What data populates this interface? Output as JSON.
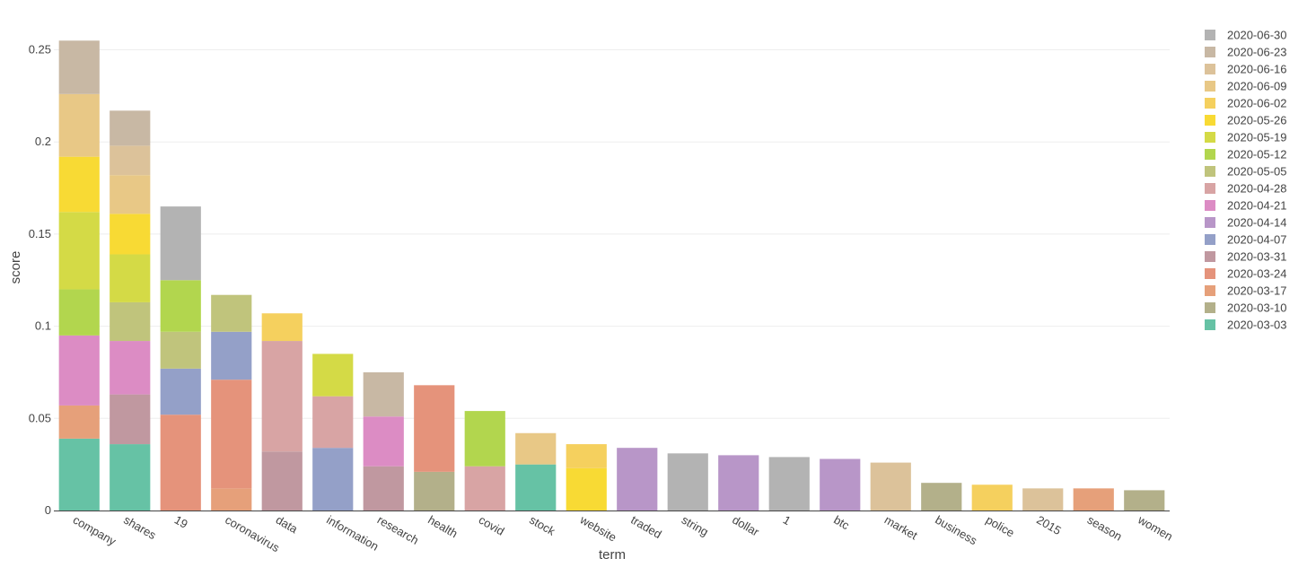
{
  "chart_data": {
    "type": "bar",
    "stacked": true,
    "xlabel": "term",
    "ylabel": "score",
    "ylim": [
      0,
      0.26
    ],
    "yticks": [
      0,
      0.05,
      0.1,
      0.15,
      0.2,
      0.25
    ],
    "ytick_labels": [
      "0",
      "0.05",
      "0.1",
      "0.15",
      "0.2",
      "0.25"
    ],
    "grid": true,
    "legend_position": "right",
    "categories": [
      "company",
      "shares",
      "19",
      "coronavirus",
      "data",
      "information",
      "research",
      "health",
      "covid",
      "stock",
      "website",
      "traded",
      "string",
      "dollar",
      "1",
      "btc",
      "market",
      "business",
      "police",
      "2015",
      "season",
      "women"
    ],
    "series": [
      {
        "name": "2020-03-03",
        "color": "#66c2a5",
        "values": [
          0.039,
          0.036,
          0,
          0,
          0,
          0,
          0,
          0,
          0,
          0.025,
          0,
          0,
          0,
          0,
          0,
          0,
          0,
          0,
          0,
          0,
          0,
          0
        ]
      },
      {
        "name": "2020-03-10",
        "color": "#b3b08a",
        "values": [
          0,
          0,
          0,
          0,
          0,
          0,
          0,
          0.021,
          0,
          0,
          0,
          0,
          0,
          0,
          0,
          0,
          0,
          0.015,
          0,
          0,
          0,
          0.011
        ]
      },
      {
        "name": "2020-03-17",
        "color": "#e6a07a",
        "values": [
          0.018,
          0,
          0,
          0.012,
          0,
          0,
          0,
          0,
          0,
          0,
          0,
          0,
          0,
          0,
          0,
          0,
          0,
          0,
          0,
          0,
          0.012,
          0
        ]
      },
      {
        "name": "2020-03-24",
        "color": "#e5937b",
        "values": [
          0,
          0,
          0.052,
          0.059,
          0,
          0,
          0,
          0.047,
          0,
          0,
          0,
          0,
          0,
          0,
          0,
          0,
          0,
          0,
          0,
          0,
          0,
          0
        ]
      },
      {
        "name": "2020-03-31",
        "color": "#c098a0",
        "values": [
          0,
          0.027,
          0,
          0,
          0.032,
          0,
          0.024,
          0,
          0,
          0,
          0,
          0,
          0,
          0,
          0,
          0,
          0,
          0,
          0,
          0,
          0,
          0
        ]
      },
      {
        "name": "2020-04-07",
        "color": "#94a0c8",
        "values": [
          0,
          0,
          0.025,
          0.026,
          0,
          0.034,
          0,
          0,
          0,
          0,
          0,
          0,
          0,
          0,
          0,
          0,
          0,
          0,
          0,
          0,
          0,
          0
        ]
      },
      {
        "name": "2020-04-14",
        "color": "#b896c8",
        "values": [
          0,
          0,
          0,
          0,
          0,
          0,
          0,
          0,
          0,
          0,
          0,
          0.034,
          0,
          0.03,
          0,
          0.028,
          0,
          0,
          0,
          0,
          0,
          0
        ]
      },
      {
        "name": "2020-04-21",
        "color": "#dc8cc4",
        "values": [
          0.038,
          0.029,
          0,
          0,
          0,
          0,
          0.027,
          0,
          0,
          0,
          0,
          0,
          0,
          0,
          0,
          0,
          0,
          0,
          0,
          0,
          0,
          0
        ]
      },
      {
        "name": "2020-04-28",
        "color": "#d8a4a4",
        "values": [
          0,
          0,
          0,
          0,
          0.06,
          0.028,
          0,
          0,
          0.024,
          0,
          0,
          0,
          0,
          0,
          0,
          0,
          0,
          0,
          0,
          0,
          0,
          0
        ]
      },
      {
        "name": "2020-05-05",
        "color": "#c0c47c",
        "values": [
          0,
          0.021,
          0.02,
          0.02,
          0,
          0,
          0,
          0,
          0,
          0,
          0,
          0,
          0,
          0,
          0,
          0,
          0,
          0,
          0,
          0,
          0,
          0
        ]
      },
      {
        "name": "2020-05-12",
        "color": "#b2d64e",
        "values": [
          0.025,
          0,
          0.028,
          0,
          0,
          0,
          0,
          0,
          0.03,
          0,
          0,
          0,
          0,
          0,
          0,
          0,
          0,
          0,
          0,
          0,
          0,
          0
        ]
      },
      {
        "name": "2020-05-19",
        "color": "#d4da46",
        "values": [
          0.042,
          0.026,
          0,
          0,
          0,
          0.023,
          0,
          0,
          0,
          0,
          0,
          0,
          0,
          0,
          0,
          0,
          0,
          0,
          0,
          0,
          0,
          0
        ]
      },
      {
        "name": "2020-05-26",
        "color": "#f8da34",
        "values": [
          0.03,
          0.022,
          0,
          0,
          0,
          0,
          0,
          0,
          0,
          0,
          0.023,
          0,
          0,
          0,
          0,
          0,
          0,
          0,
          0,
          0,
          0,
          0
        ]
      },
      {
        "name": "2020-06-02",
        "color": "#f5d05e",
        "values": [
          0,
          0,
          0,
          0,
          0.015,
          0,
          0,
          0,
          0,
          0,
          0.013,
          0,
          0,
          0,
          0,
          0,
          0,
          0,
          0.014,
          0,
          0,
          0
        ]
      },
      {
        "name": "2020-06-09",
        "color": "#e8c886",
        "values": [
          0.034,
          0.021,
          0,
          0,
          0,
          0,
          0,
          0,
          0,
          0.017,
          0,
          0,
          0,
          0,
          0,
          0,
          0,
          0,
          0,
          0,
          0,
          0
        ]
      },
      {
        "name": "2020-06-16",
        "color": "#dcc29a",
        "values": [
          0,
          0.016,
          0,
          0,
          0,
          0,
          0,
          0,
          0,
          0,
          0,
          0,
          0,
          0,
          0,
          0,
          0.026,
          0,
          0,
          0.012,
          0,
          0
        ]
      },
      {
        "name": "2020-06-23",
        "color": "#c8b8a4",
        "values": [
          0.029,
          0.019,
          0,
          0,
          0,
          0,
          0.024,
          0,
          0,
          0,
          0,
          0,
          0,
          0,
          0,
          0,
          0,
          0,
          0,
          0,
          0,
          0
        ]
      },
      {
        "name": "2020-06-30",
        "color": "#b3b3b3",
        "values": [
          0,
          0,
          0.04,
          0,
          0,
          0,
          0,
          0,
          0,
          0,
          0,
          0,
          0.031,
          0,
          0.029,
          0,
          0,
          0,
          0,
          0,
          0,
          0
        ]
      }
    ]
  }
}
